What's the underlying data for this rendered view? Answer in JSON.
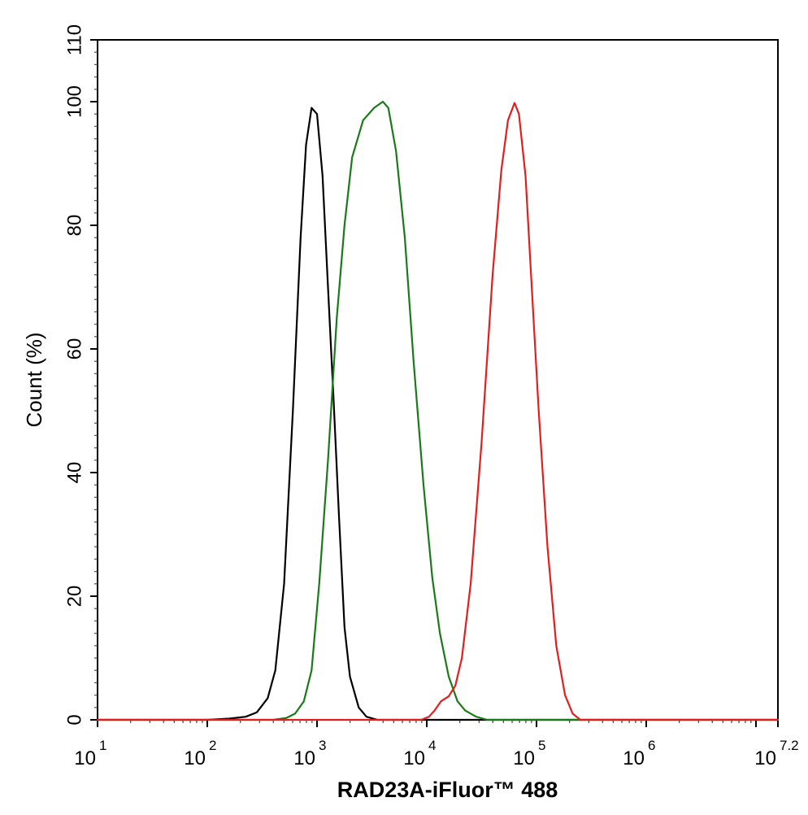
{
  "chart_data": {
    "type": "line",
    "xlabel": "RAD23A-iFluor™ 488",
    "ylabel": "Count  (%)",
    "xscale": "log",
    "xlim": [
      1,
      7.2
    ],
    "ylim": [
      0,
      110
    ],
    "grid": false,
    "y_ticks": [
      {
        "value": 0,
        "label": "0"
      },
      {
        "value": 20,
        "label": "20"
      },
      {
        "value": 40,
        "label": "40"
      },
      {
        "value": 60,
        "label": "60"
      },
      {
        "value": 80,
        "label": "80"
      },
      {
        "value": 100,
        "label": "100"
      },
      {
        "value": 110,
        "label": "110"
      }
    ],
    "x_ticks": [
      {
        "exp": 1,
        "base": "10",
        "sup": "1"
      },
      {
        "exp": 2,
        "base": "10",
        "sup": "2"
      },
      {
        "exp": 3,
        "base": "10",
        "sup": "3"
      },
      {
        "exp": 4,
        "base": "10",
        "sup": "4"
      },
      {
        "exp": 5,
        "base": "10",
        "sup": "5"
      },
      {
        "exp": 6,
        "base": "10",
        "sup": "6"
      },
      {
        "exp": 7.2,
        "base": "10",
        "sup": "7.2"
      }
    ],
    "series": [
      {
        "color": "#000000",
        "points": [
          [
            1.0,
            0
          ],
          [
            2.0,
            0
          ],
          [
            2.2,
            0.2
          ],
          [
            2.35,
            0.5
          ],
          [
            2.45,
            1.2
          ],
          [
            2.55,
            3.5
          ],
          [
            2.62,
            8
          ],
          [
            2.7,
            22
          ],
          [
            2.78,
            50
          ],
          [
            2.85,
            78
          ],
          [
            2.9,
            93
          ],
          [
            2.95,
            99
          ],
          [
            3.0,
            98
          ],
          [
            3.05,
            88
          ],
          [
            3.1,
            70
          ],
          [
            3.15,
            52
          ],
          [
            3.2,
            33
          ],
          [
            3.25,
            15
          ],
          [
            3.3,
            7
          ],
          [
            3.38,
            2
          ],
          [
            3.45,
            0.5
          ],
          [
            3.55,
            0
          ],
          [
            7.2,
            0
          ]
        ]
      },
      {
        "color": "#1a7a1a",
        "points": [
          [
            1.0,
            0
          ],
          [
            2.6,
            0
          ],
          [
            2.72,
            0.3
          ],
          [
            2.8,
            1
          ],
          [
            2.88,
            3
          ],
          [
            2.95,
            8
          ],
          [
            3.02,
            22
          ],
          [
            3.1,
            42
          ],
          [
            3.18,
            65
          ],
          [
            3.25,
            80
          ],
          [
            3.32,
            91
          ],
          [
            3.42,
            97
          ],
          [
            3.52,
            99
          ],
          [
            3.6,
            100
          ],
          [
            3.65,
            99
          ],
          [
            3.72,
            92
          ],
          [
            3.8,
            78
          ],
          [
            3.88,
            58
          ],
          [
            3.97,
            38
          ],
          [
            4.05,
            23
          ],
          [
            4.12,
            14
          ],
          [
            4.2,
            7
          ],
          [
            4.28,
            3
          ],
          [
            4.35,
            1.5
          ],
          [
            4.45,
            0.5
          ],
          [
            4.55,
            0
          ],
          [
            7.2,
            0
          ]
        ]
      },
      {
        "color": "#e31e1e",
        "points": [
          [
            1.0,
            0
          ],
          [
            3.95,
            0
          ],
          [
            4.02,
            0.5
          ],
          [
            4.07,
            1.5
          ],
          [
            4.13,
            3
          ],
          [
            4.2,
            3.8
          ],
          [
            4.26,
            5.5
          ],
          [
            4.32,
            10
          ],
          [
            4.4,
            22
          ],
          [
            4.5,
            45
          ],
          [
            4.6,
            72
          ],
          [
            4.68,
            89
          ],
          [
            4.74,
            97
          ],
          [
            4.8,
            99.8
          ],
          [
            4.84,
            98
          ],
          [
            4.9,
            88
          ],
          [
            4.95,
            72
          ],
          [
            5.02,
            50
          ],
          [
            5.1,
            28
          ],
          [
            5.18,
            12
          ],
          [
            5.26,
            4
          ],
          [
            5.33,
            1
          ],
          [
            5.4,
            0
          ],
          [
            7.2,
            0
          ]
        ]
      }
    ]
  }
}
